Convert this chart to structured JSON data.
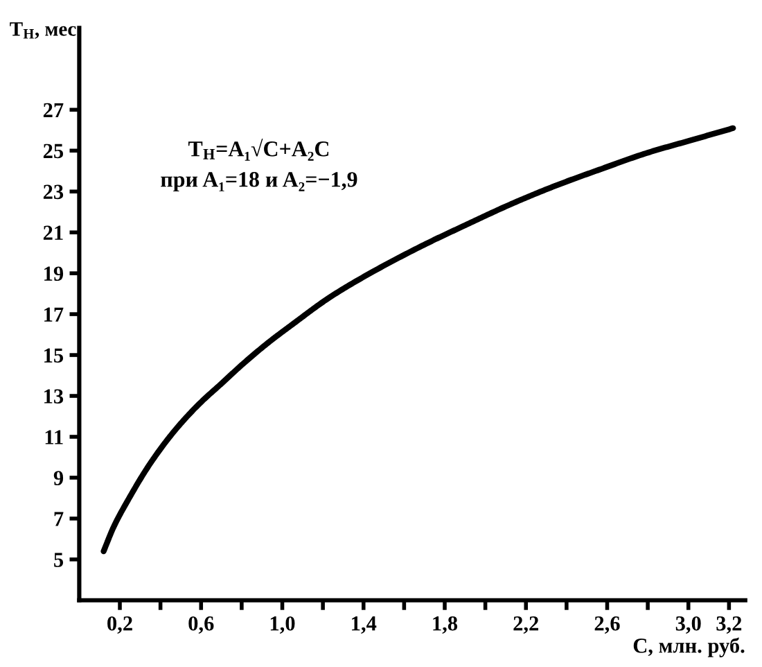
{
  "chart_data": {
    "type": "line",
    "xlabel": "C, млн. руб.",
    "ylabel": "T$_{Н}$, мес",
    "annotations": [
      "T$_{Н}$=A₁√C+A₂C",
      "при A₁=18 и A₂=−1,9"
    ],
    "x": [
      0.12,
      0.17,
      0.24,
      0.35,
      0.47,
      0.59,
      0.7,
      0.81,
      0.93,
      1.05,
      1.23,
      1.45,
      1.72,
      1.89,
      2.13,
      2.35,
      2.57,
      2.8,
      3.01,
      3.22
    ],
    "series": [
      {
        "color": "#000000",
        "values": [
          5.4,
          6.6,
          7.9,
          9.7,
          11.3,
          12.6,
          13.6,
          14.6,
          15.6,
          16.5,
          17.8,
          19.1,
          20.5,
          21.3,
          22.4,
          23.3,
          24.1,
          24.9,
          25.5,
          26.1
        ]
      }
    ],
    "xlim": [
      0,
      3.28
    ],
    "ylim": [
      3,
      31
    ],
    "xticks": [
      {
        "value": 0.2,
        "label": "0,2"
      },
      {
        "value": 0.4,
        "label": null
      },
      {
        "value": 0.6,
        "label": "0,6"
      },
      {
        "value": 0.8,
        "label": null
      },
      {
        "value": 1.0,
        "label": "1,0"
      },
      {
        "value": 1.2,
        "label": null
      },
      {
        "value": 1.4,
        "label": "1,4"
      },
      {
        "value": 1.6,
        "label": null
      },
      {
        "value": 1.8,
        "label": "1,8"
      },
      {
        "value": 2.0,
        "label": null
      },
      {
        "value": 2.2,
        "label": "2,2"
      },
      {
        "value": 2.4,
        "label": null
      },
      {
        "value": 2.6,
        "label": "2,6"
      },
      {
        "value": 2.8,
        "label": null
      },
      {
        "value": 3.0,
        "label": "3,0"
      },
      {
        "value": 3.2,
        "label": "3,2"
      }
    ],
    "yticks": [
      5,
      7,
      9,
      11,
      13,
      15,
      17,
      19,
      21,
      23,
      25,
      27
    ],
    "line_style": "solid"
  }
}
